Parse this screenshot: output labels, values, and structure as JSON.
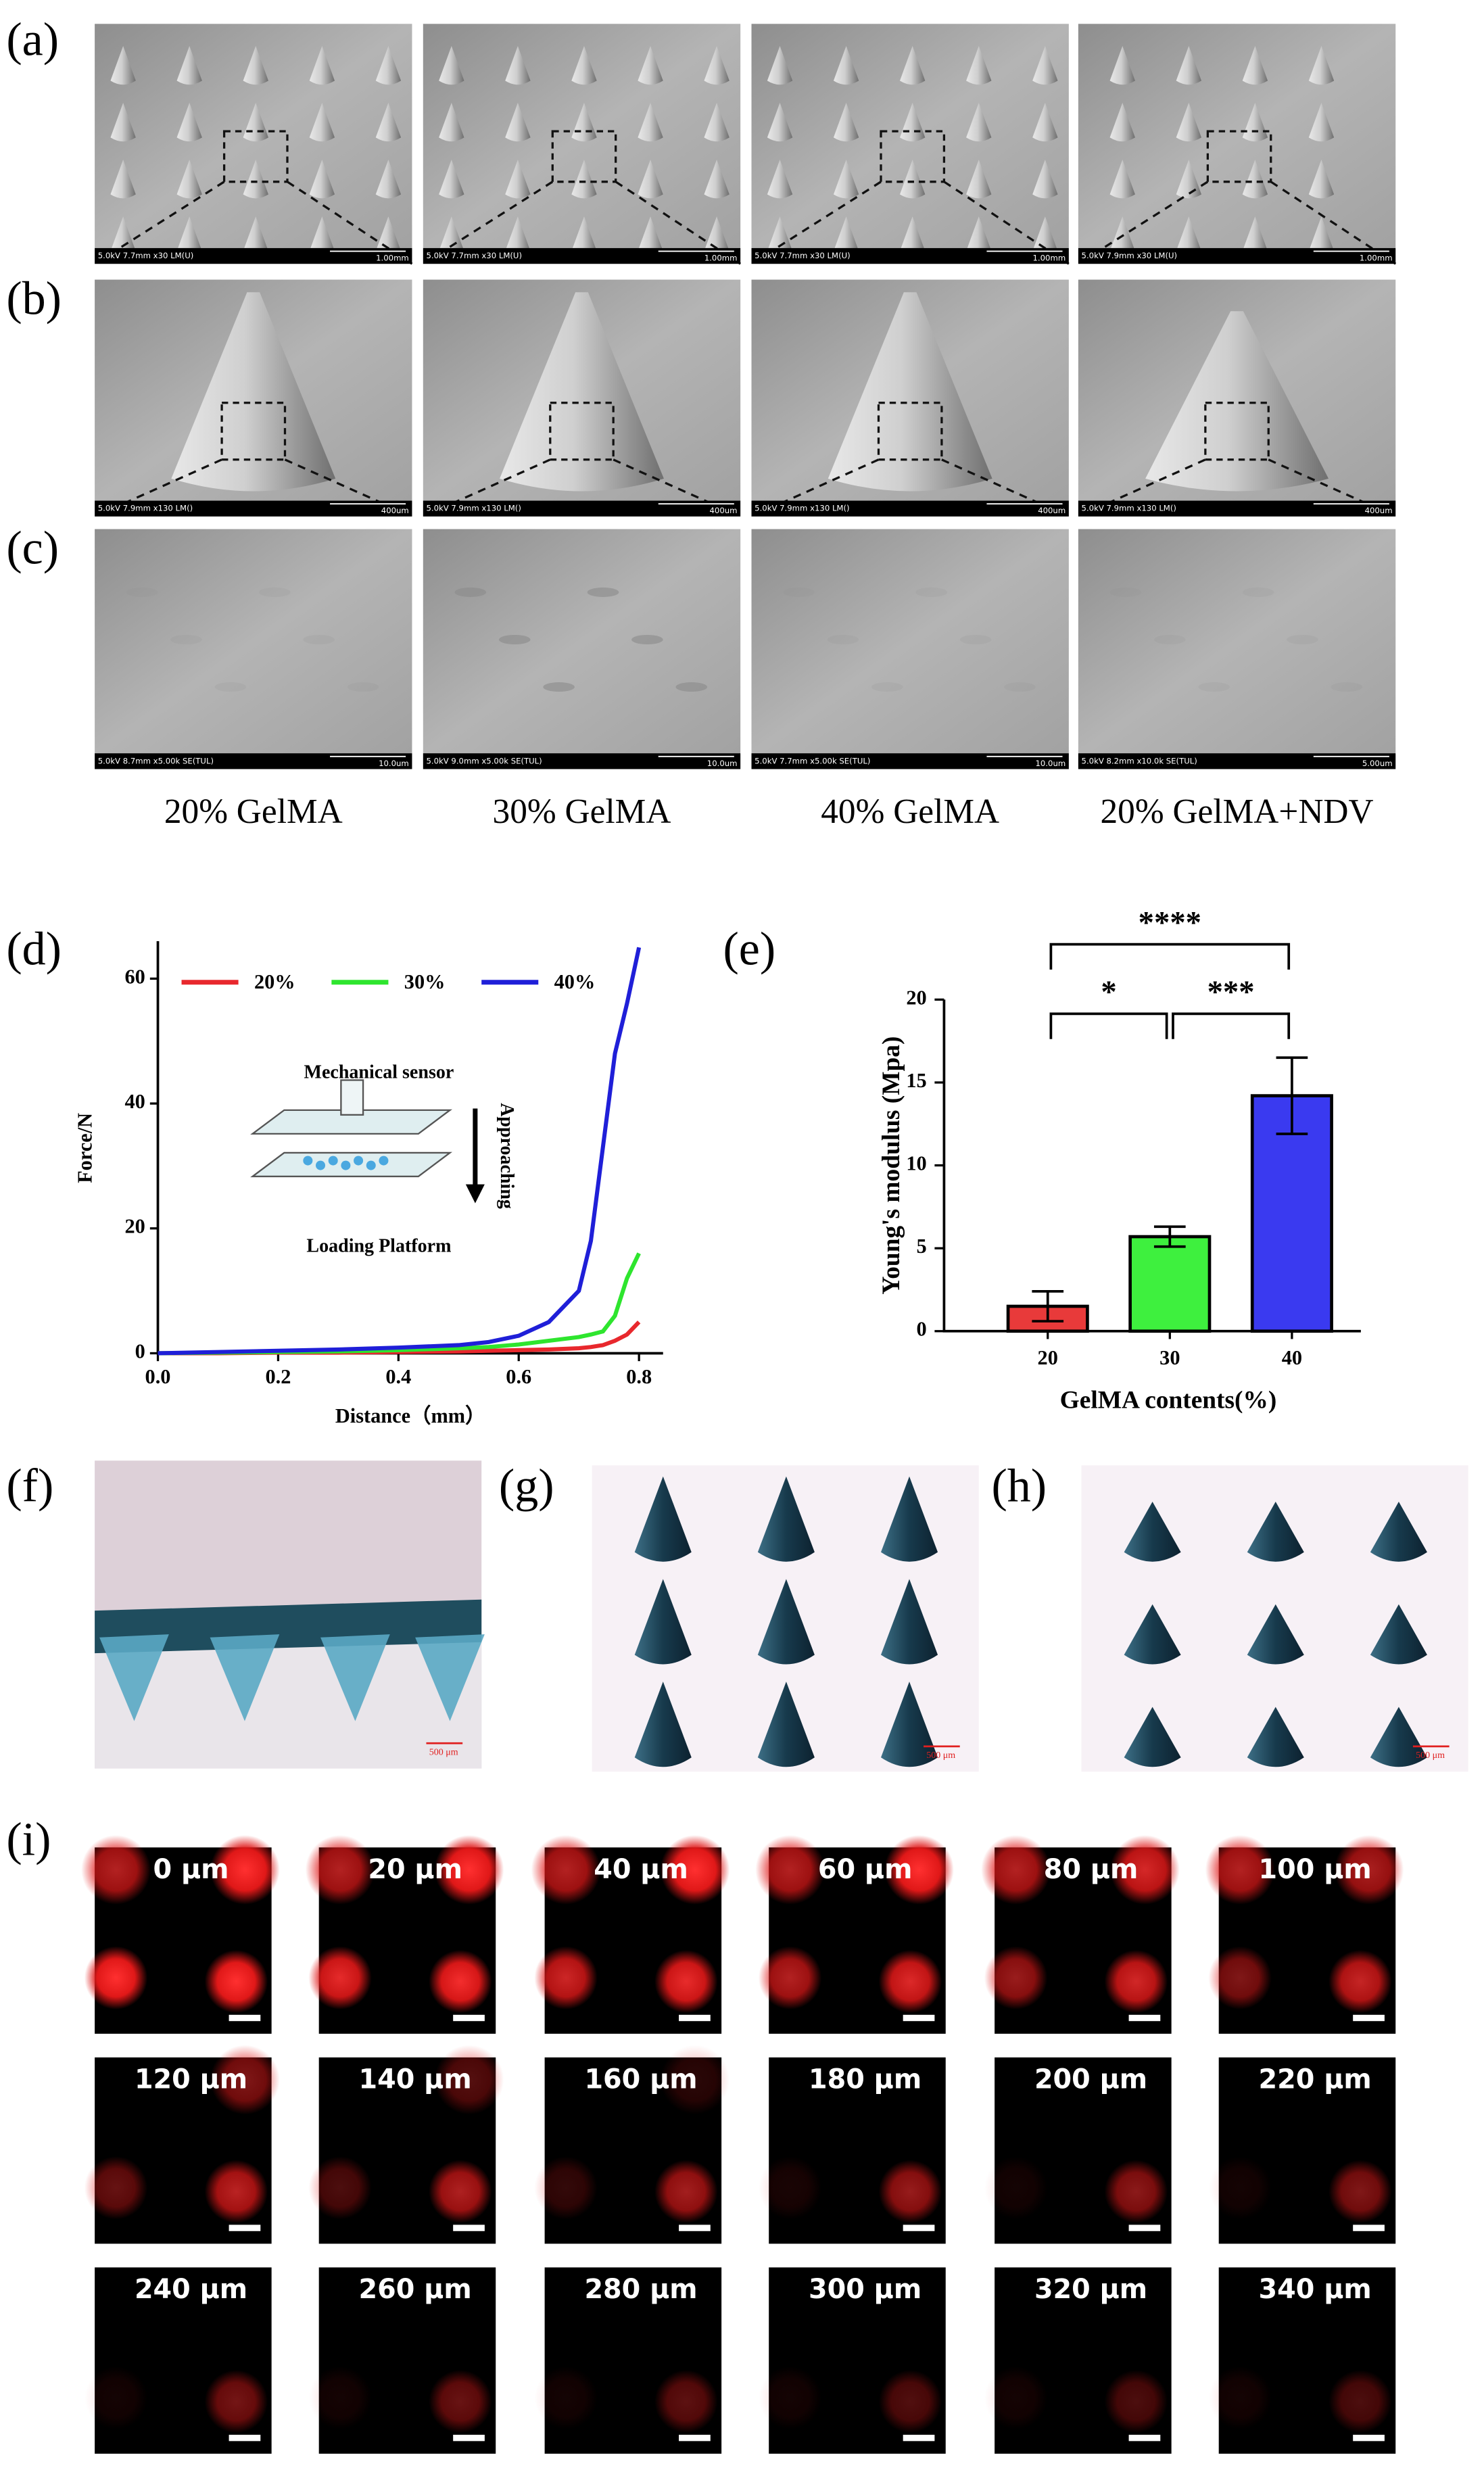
{
  "figure": {
    "panel_labels": [
      "(a)",
      "(b)",
      "(c)",
      "(d)",
      "(e)",
      "(f)",
      "(g)",
      "(h)",
      "(i)"
    ],
    "sem": {
      "columns": [
        "20% GelMA",
        "30% GelMA",
        "40% GelMA",
        "20% GelMA+NDV"
      ],
      "rows": [
        [
          {
            "info": "5.0kV 7.7mm x30 LM(U)",
            "scale": "1.00mm"
          },
          {
            "info": "5.0kV 7.7mm x30 LM(U)",
            "scale": "1.00mm"
          },
          {
            "info": "5.0kV 7.7mm x30 LM(U)",
            "scale": "1.00mm"
          },
          {
            "info": "5.0kV 7.9mm x30 LM(U)",
            "scale": "1.00mm"
          }
        ],
        [
          {
            "info": "5.0kV 7.9mm x130 LM()",
            "scale": "400um"
          },
          {
            "info": "5.0kV 7.9mm x130 LM()",
            "scale": "400um"
          },
          {
            "info": "5.0kV 7.9mm x130 LM()",
            "scale": "400um"
          },
          {
            "info": "5.0kV 7.9mm x130 LM()",
            "scale": "400um"
          }
        ],
        [
          {
            "info": "5.0kV 8.7mm x5.00k SE(TUL)",
            "scale": "10.0um"
          },
          {
            "info": "5.0kV 9.0mm x5.00k SE(TUL)",
            "scale": "10.0um"
          },
          {
            "info": "5.0kV 7.7mm x5.00k SE(TUL)",
            "scale": "10.0um"
          },
          {
            "info": "5.0kV 8.2mm x10.0k SE(TUL)",
            "scale": "5.00um"
          }
        ]
      ]
    },
    "micrograph_scales": [
      "500 μm",
      "500 μm",
      "500 μm"
    ],
    "fluorescence_depths": [
      "0 μm",
      "20 μm",
      "40 μm",
      "60 μm",
      "80 μm",
      "100 μm",
      "120 μm",
      "140 μm",
      "160 μm",
      "180 μm",
      "200 μm",
      "220 μm",
      "240 μm",
      "260 μm",
      "280 μm",
      "300 μm",
      "320 μm",
      "340 μm"
    ]
  },
  "chart_data": [
    {
      "type": "line",
      "y_label": "Force/N",
      "x_label": "Distance（mm）",
      "x": [
        0,
        0.1,
        0.2,
        0.3,
        0.4,
        0.5,
        0.55,
        0.6,
        0.65,
        0.7,
        0.72,
        0.74,
        0.76,
        0.78,
        0.8
      ],
      "xlim": [
        0,
        0.84
      ],
      "xticks": [
        {
          "value": 0,
          "label": "0.0"
        },
        0.2,
        0.4,
        0.6,
        0.8
      ],
      "ylim": [
        0,
        66
      ],
      "yticks": [
        0,
        20,
        40,
        60
      ],
      "legend": "top",
      "series": [
        {
          "name": "20%",
          "color": "#e8282d",
          "values": [
            0,
            0,
            0.1,
            0.1,
            0.2,
            0.3,
            0.4,
            0.5,
            0.6,
            0.8,
            1.0,
            1.3,
            2,
            3,
            5
          ]
        },
        {
          "name": "30%",
          "color": "#2ee52e",
          "values": [
            0,
            0.1,
            0.2,
            0.3,
            0.5,
            0.8,
            1.0,
            1.4,
            2.0,
            2.6,
            3,
            3.5,
            6,
            12,
            16
          ]
        },
        {
          "name": "40%",
          "color": "#1f1fd8",
          "values": [
            0,
            0.2,
            0.4,
            0.6,
            0.9,
            1.3,
            1.8,
            2.8,
            5,
            10,
            18,
            33,
            48,
            56,
            65
          ]
        }
      ],
      "inset": {
        "sensor": "Mechanical sensor",
        "platform": "Loading Platform",
        "motion": "Approaching"
      }
    },
    {
      "type": "bar",
      "y_label": "Young's modulus (Mpa)",
      "x_label": "GelMA contents(%)",
      "categories": [
        "20",
        "30",
        "40"
      ],
      "values": [
        1.5,
        5.7,
        14.2
      ],
      "errors": [
        0.9,
        0.6,
        2.3
      ],
      "colors": [
        "#e83a3a",
        "#3ef03e",
        "#3a3af0"
      ],
      "ylim": [
        0,
        20
      ],
      "yticks": [
        0,
        5,
        10,
        15,
        20
      ],
      "significance": [
        {
          "label": "****",
          "between": [
            "20",
            "40"
          ]
        },
        {
          "label": "*",
          "between": [
            "20",
            "30"
          ]
        },
        {
          "label": "***",
          "between": [
            "30",
            "40"
          ]
        }
      ]
    }
  ]
}
